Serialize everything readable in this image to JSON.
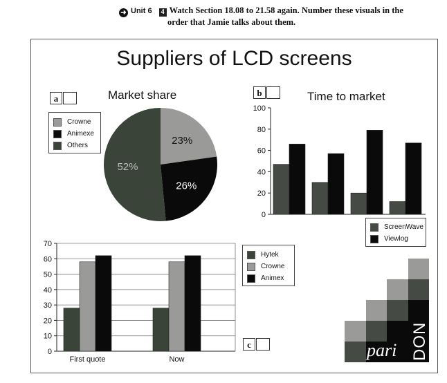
{
  "instruction": {
    "unit": "Unit 6",
    "number": "4",
    "line1": "Watch Section 18.08 to 21.58 again. Number these visuals in the",
    "line2": "order that Jamie talks about them."
  },
  "main_title": "Suppliers of LCD screens",
  "panels": {
    "a": {
      "letter": "a",
      "title": "Market share"
    },
    "b": {
      "letter": "b",
      "title": "Time to market"
    },
    "c": {
      "letter": "c"
    }
  },
  "logo": {
    "pari": "pari",
    "don": "DON"
  },
  "colors": {
    "dark_green": "#3a4438",
    "mid_grey": "#9a9b98",
    "black": "#0a0a0a",
    "dark_grey": "#454a44"
  },
  "chart_data": [
    {
      "type": "pie",
      "title": "Market share",
      "slices": [
        {
          "name": "Crowne",
          "value": 23,
          "label": "23%",
          "color": "#9a9b98"
        },
        {
          "name": "Animexe",
          "value": 26,
          "label": "26%",
          "color": "#0a0a0a"
        },
        {
          "name": "Others",
          "value": 52,
          "label": "52%",
          "color": "#3a4438"
        }
      ],
      "legend": [
        "Crowne",
        "Animexe",
        "Others"
      ],
      "legend_position": "left"
    },
    {
      "type": "bar",
      "title": "Time to market",
      "categories": [
        "",
        "",
        "",
        ""
      ],
      "ylim": [
        0,
        100
      ],
      "yticks": [
        0,
        20,
        40,
        60,
        80,
        100
      ],
      "grid": false,
      "series": [
        {
          "name": "ScreenWave",
          "values": [
            47,
            30,
            20,
            12
          ],
          "color": "#454a44"
        },
        {
          "name": "Viewlog",
          "values": [
            66,
            57,
            79,
            67
          ],
          "color": "#0a0a0a"
        }
      ],
      "legend_position": "bottom-right"
    },
    {
      "type": "bar",
      "title": "",
      "categories": [
        "First quote",
        "Now"
      ],
      "ylim": [
        0,
        70
      ],
      "yticks": [
        0,
        10,
        20,
        30,
        40,
        50,
        60,
        70
      ],
      "grid": true,
      "series": [
        {
          "name": "Hytek",
          "values": [
            28,
            28
          ],
          "color": "#3a4438"
        },
        {
          "name": "Crowne",
          "values": [
            58,
            58
          ],
          "color": "#9a9b98"
        },
        {
          "name": "Animex",
          "values": [
            62,
            62
          ],
          "color": "#0a0a0a"
        }
      ],
      "legend_position": "right"
    }
  ]
}
